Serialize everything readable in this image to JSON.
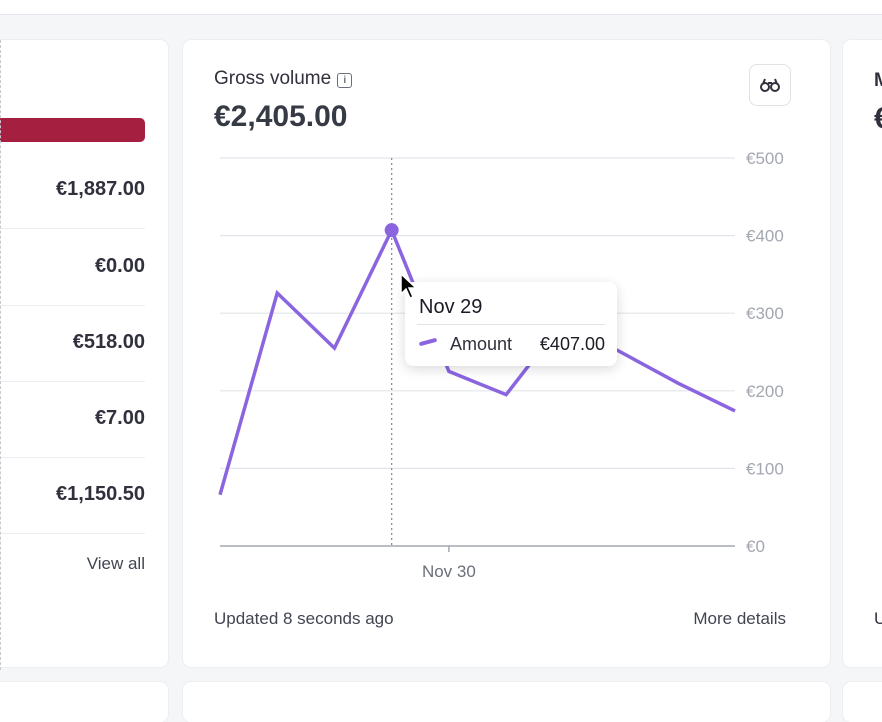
{
  "left_card": {
    "rows": [
      "€1,887.00",
      "€0.00",
      "€518.00",
      "€7.00",
      "€1,150.50"
    ],
    "view_all": "View all"
  },
  "gross_volume": {
    "title": "Gross volume",
    "info_icon": "i",
    "total": "€2,405.00",
    "explore_icon": "binoculars-icon",
    "updated": "Updated 8 seconds ago",
    "more_details": "More details",
    "tooltip": {
      "date": "Nov 29",
      "label": "Amount",
      "value": "€407.00"
    }
  },
  "right_card": {
    "title_partial": "M",
    "value_partial": "€",
    "footer_partial": "U"
  },
  "colors": {
    "line": "#8b65e0",
    "accent_bar": "#a51f40"
  },
  "chart_data": {
    "type": "line",
    "title": "Gross volume",
    "series": [
      {
        "name": "Amount",
        "values": [
          66,
          326,
          255,
          407,
          225,
          195,
          290,
          250,
          210,
          174
        ]
      }
    ],
    "x_tick_labels": [
      "Nov 30"
    ],
    "x_tick_index": 4,
    "highlight_index": 3,
    "ylim": [
      0,
      500
    ],
    "y_ticks": [
      0,
      100,
      200,
      300,
      400,
      500
    ],
    "y_tick_labels": [
      "€0",
      "€100",
      "€200",
      "€300",
      "€400",
      "€500"
    ],
    "grid": true
  }
}
